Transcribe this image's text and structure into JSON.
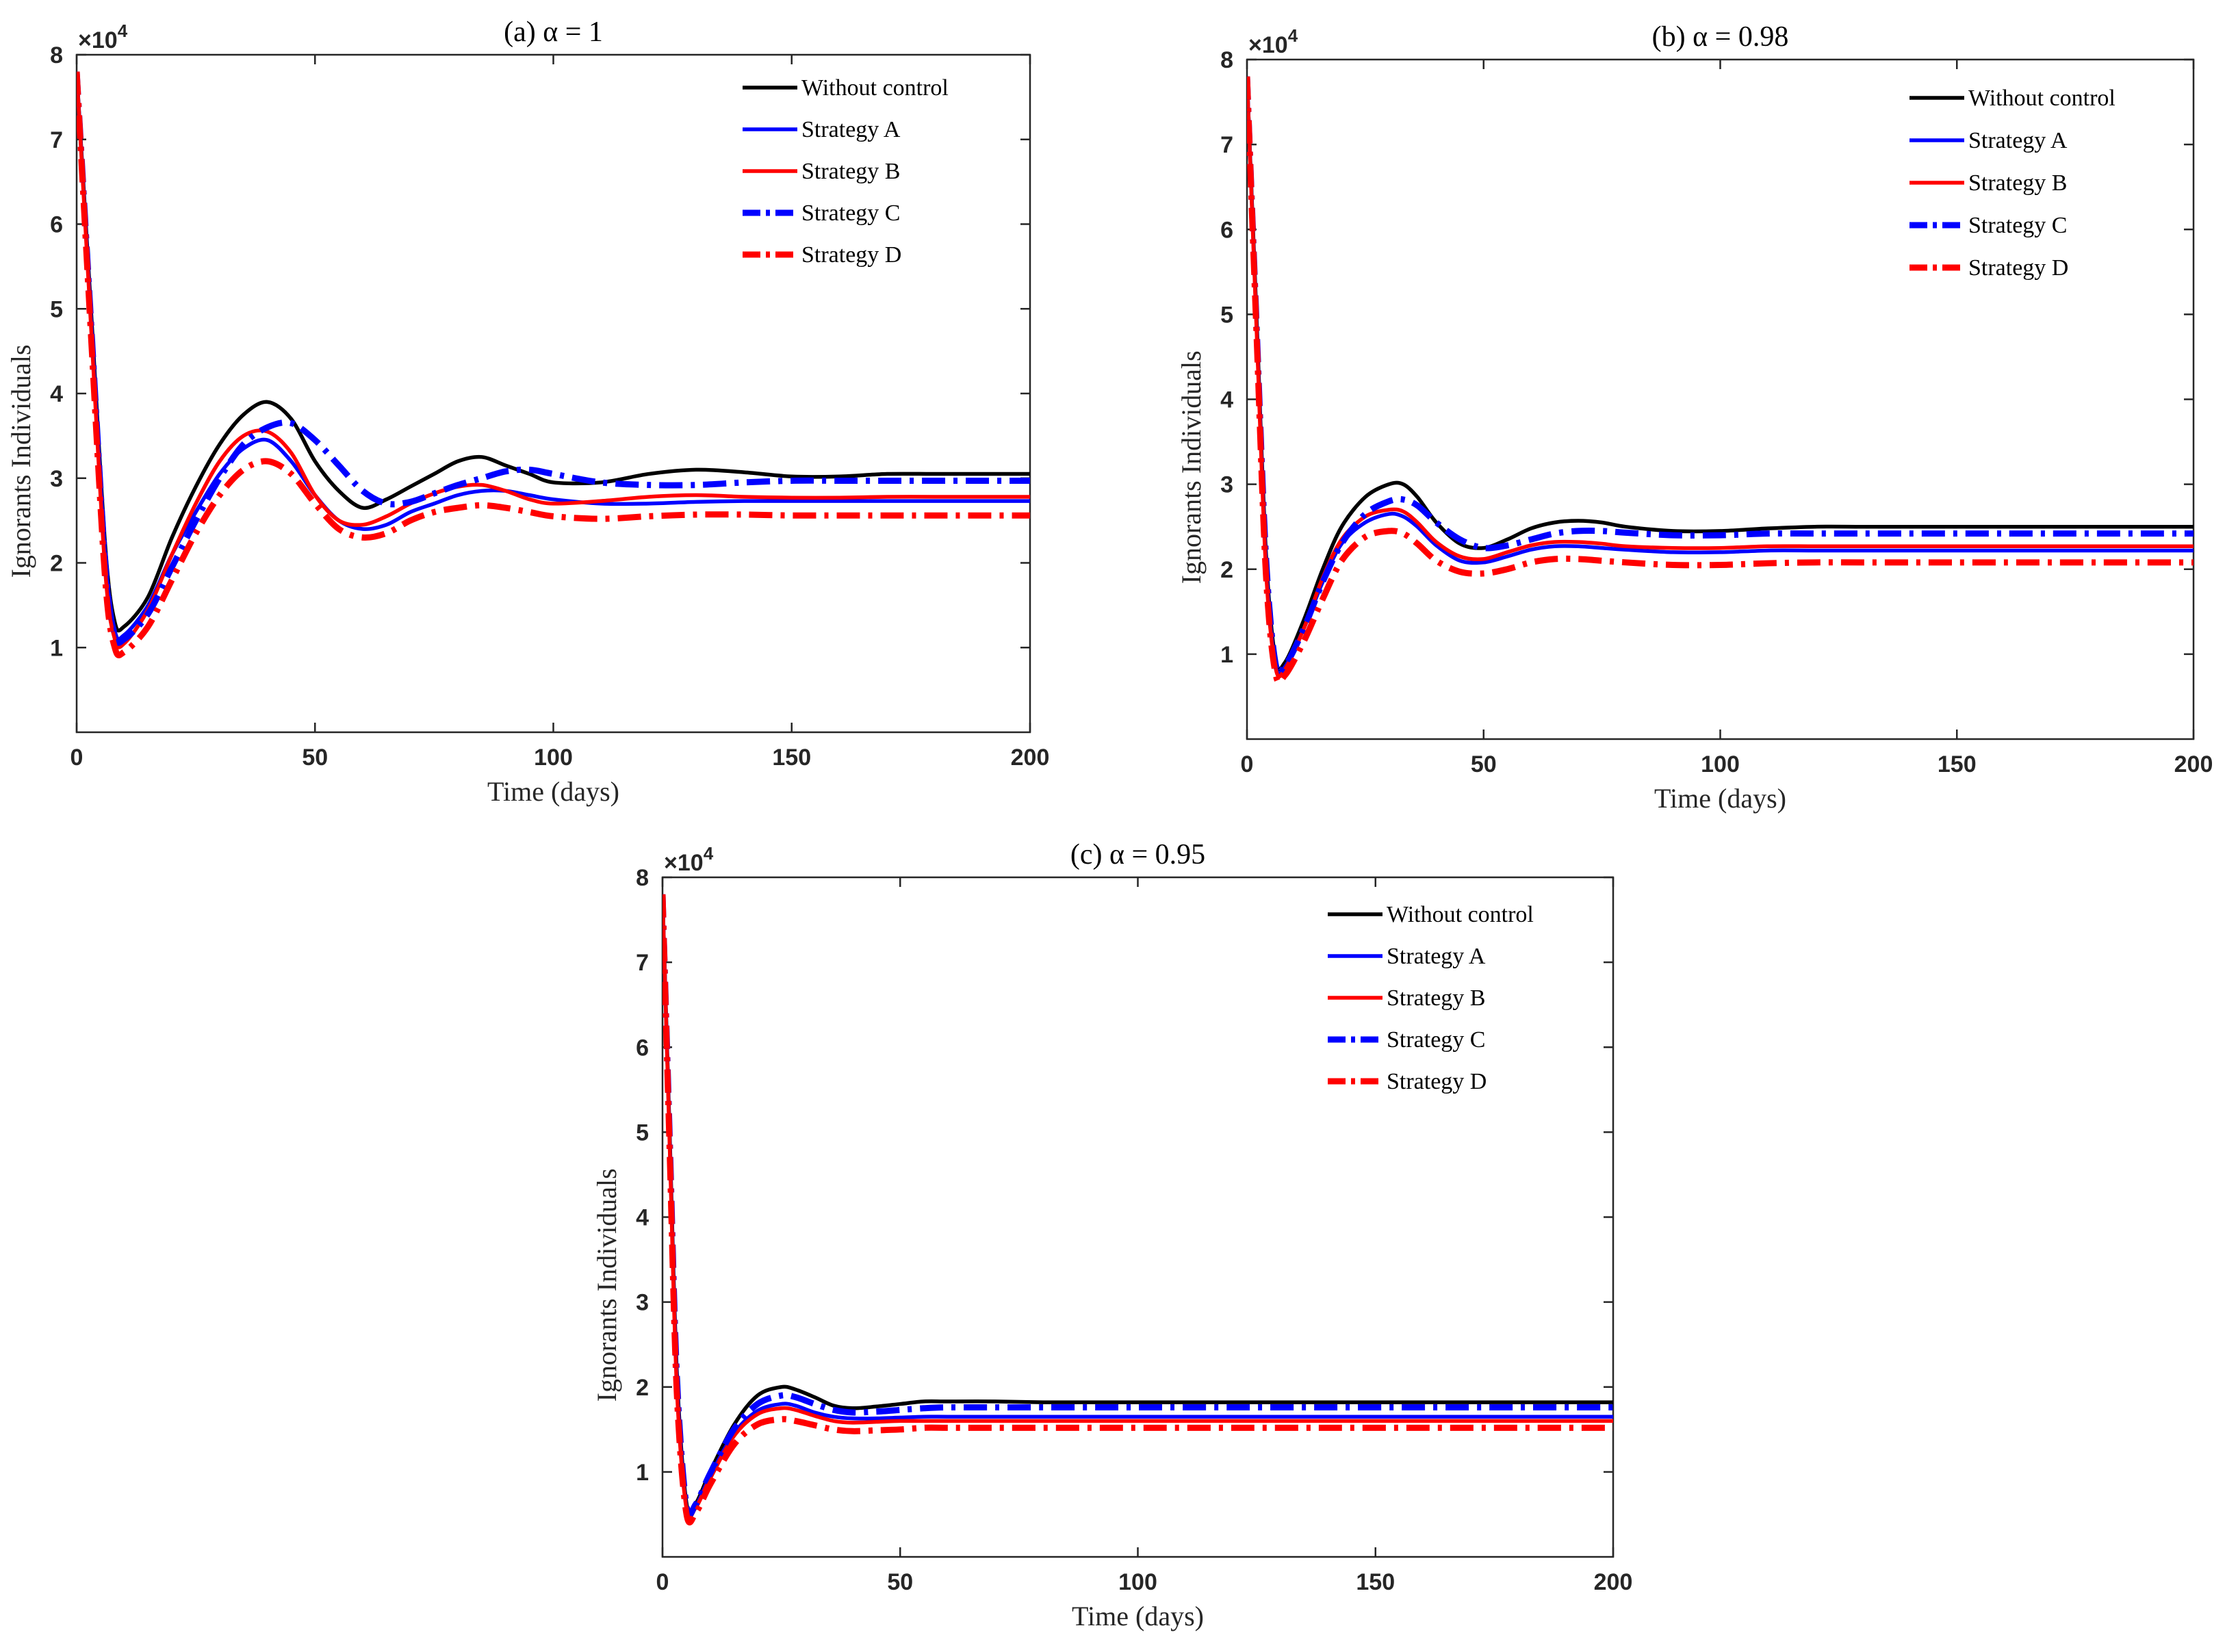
{
  "chart_data": [
    {
      "type": "line",
      "title": "(a) α = 1",
      "xlabel": "Time (days)",
      "ylabel": "Ignorants Individuals",
      "exponent": "×10^4",
      "xlim": [
        0,
        200
      ],
      "ylim": [
        0,
        8
      ],
      "xticks": [
        "0",
        "50",
        "100",
        "150",
        "200"
      ],
      "yticks": [
        "1",
        "2",
        "3",
        "4",
        "5",
        "6",
        "7",
        "8"
      ],
      "legend_position": "top-right",
      "series": [
        {
          "name": "Without control",
          "color": "#000000",
          "style": "solid",
          "x": [
            0,
            3,
            6,
            8,
            10,
            15,
            20,
            25,
            30,
            35,
            40,
            45,
            50,
            55,
            60,
            65,
            70,
            75,
            80,
            85,
            90,
            95,
            100,
            110,
            120,
            130,
            140,
            150,
            160,
            170,
            180,
            190,
            200
          ],
          "y": [
            7.8,
            5.0,
            2.2,
            1.3,
            1.25,
            1.6,
            2.3,
            2.9,
            3.4,
            3.75,
            3.9,
            3.7,
            3.2,
            2.85,
            2.65,
            2.75,
            2.9,
            3.05,
            3.2,
            3.25,
            3.15,
            3.05,
            2.95,
            2.95,
            3.05,
            3.1,
            3.07,
            3.02,
            3.02,
            3.05,
            3.05,
            3.05,
            3.05
          ]
        },
        {
          "name": "Strategy A",
          "color": "#0000ff",
          "style": "solid",
          "x": [
            0,
            3,
            6,
            8,
            10,
            15,
            20,
            25,
            30,
            35,
            40,
            45,
            50,
            55,
            60,
            65,
            70,
            75,
            80,
            85,
            90,
            95,
            100,
            110,
            120,
            130,
            140,
            150,
            160,
            170,
            180,
            190,
            200
          ],
          "y": [
            7.8,
            4.9,
            2.1,
            1.2,
            1.15,
            1.5,
            2.1,
            2.6,
            3.05,
            3.35,
            3.45,
            3.2,
            2.8,
            2.5,
            2.4,
            2.45,
            2.6,
            2.7,
            2.8,
            2.85,
            2.85,
            2.8,
            2.75,
            2.7,
            2.7,
            2.72,
            2.73,
            2.73,
            2.73,
            2.73,
            2.73,
            2.73,
            2.73
          ]
        },
        {
          "name": "Strategy B",
          "color": "#ff0000",
          "style": "solid",
          "x": [
            0,
            3,
            6,
            8,
            10,
            15,
            20,
            25,
            30,
            35,
            40,
            45,
            50,
            55,
            60,
            65,
            70,
            75,
            80,
            85,
            90,
            95,
            100,
            110,
            120,
            130,
            140,
            150,
            160,
            170,
            180,
            190,
            200
          ],
          "y": [
            7.8,
            4.8,
            1.9,
            1.1,
            1.05,
            1.45,
            2.1,
            2.7,
            3.2,
            3.5,
            3.55,
            3.3,
            2.8,
            2.5,
            2.45,
            2.55,
            2.7,
            2.82,
            2.9,
            2.92,
            2.85,
            2.75,
            2.7,
            2.73,
            2.78,
            2.8,
            2.78,
            2.77,
            2.77,
            2.78,
            2.78,
            2.78,
            2.78
          ]
        },
        {
          "name": "Strategy C",
          "color": "#0000ff",
          "style": "dashdot",
          "x": [
            0,
            3,
            6,
            8,
            10,
            15,
            20,
            25,
            30,
            35,
            40,
            45,
            50,
            55,
            60,
            65,
            70,
            75,
            80,
            85,
            90,
            95,
            100,
            110,
            120,
            130,
            140,
            150,
            160,
            170,
            180,
            190,
            200
          ],
          "y": [
            7.8,
            4.85,
            2.0,
            1.15,
            1.1,
            1.4,
            1.95,
            2.5,
            3.0,
            3.4,
            3.6,
            3.65,
            3.45,
            3.15,
            2.85,
            2.7,
            2.72,
            2.82,
            2.92,
            3.0,
            3.08,
            3.1,
            3.05,
            2.95,
            2.92,
            2.92,
            2.95,
            2.97,
            2.97,
            2.97,
            2.97,
            2.97,
            2.97
          ]
        },
        {
          "name": "Strategy D",
          "color": "#ff0000",
          "style": "dashdot",
          "x": [
            0,
            3,
            6,
            8,
            10,
            15,
            20,
            25,
            30,
            35,
            40,
            45,
            50,
            55,
            60,
            65,
            70,
            75,
            80,
            85,
            90,
            95,
            100,
            110,
            120,
            130,
            140,
            150,
            160,
            170,
            180,
            190,
            200
          ],
          "y": [
            7.8,
            4.7,
            1.8,
            1.0,
            0.95,
            1.25,
            1.8,
            2.35,
            2.8,
            3.1,
            3.2,
            3.05,
            2.7,
            2.4,
            2.3,
            2.35,
            2.5,
            2.6,
            2.65,
            2.68,
            2.65,
            2.6,
            2.55,
            2.52,
            2.55,
            2.57,
            2.57,
            2.56,
            2.56,
            2.56,
            2.56,
            2.56,
            2.56
          ]
        }
      ]
    },
    {
      "type": "line",
      "title": "(b) α = 0.98",
      "xlabel": "Time (days)",
      "ylabel": "Ignorants Individuals",
      "exponent": "×10^4",
      "xlim": [
        0,
        200
      ],
      "ylim": [
        0,
        8
      ],
      "xticks": [
        "0",
        "50",
        "100",
        "150",
        "200"
      ],
      "yticks": [
        "1",
        "2",
        "3",
        "4",
        "5",
        "6",
        "7",
        "8"
      ],
      "legend_position": "top-right",
      "series": [
        {
          "name": "Without control",
          "color": "#000000",
          "style": "solid",
          "x": [
            0,
            2,
            4,
            6,
            8,
            12,
            16,
            20,
            25,
            30,
            33,
            36,
            40,
            45,
            50,
            55,
            60,
            65,
            70,
            75,
            80,
            90,
            100,
            110,
            120,
            130,
            140,
            150,
            160,
            170,
            180,
            190,
            200
          ],
          "y": [
            7.8,
            5.0,
            2.2,
            0.95,
            0.9,
            1.4,
            2.0,
            2.5,
            2.85,
            3.0,
            3.0,
            2.85,
            2.55,
            2.3,
            2.25,
            2.35,
            2.48,
            2.55,
            2.57,
            2.55,
            2.5,
            2.45,
            2.45,
            2.48,
            2.5,
            2.5,
            2.5,
            2.5,
            2.5,
            2.5,
            2.5,
            2.5,
            2.5
          ]
        },
        {
          "name": "Strategy A",
          "color": "#0000ff",
          "style": "solid",
          "x": [
            0,
            2,
            4,
            6,
            8,
            12,
            16,
            20,
            25,
            30,
            33,
            36,
            40,
            45,
            50,
            55,
            60,
            65,
            70,
            75,
            80,
            90,
            100,
            110,
            120,
            130,
            140,
            150,
            160,
            170,
            180,
            190,
            200
          ],
          "y": [
            7.8,
            4.9,
            2.1,
            0.88,
            0.85,
            1.3,
            1.85,
            2.3,
            2.55,
            2.65,
            2.62,
            2.5,
            2.28,
            2.1,
            2.08,
            2.15,
            2.23,
            2.27,
            2.27,
            2.25,
            2.23,
            2.2,
            2.2,
            2.22,
            2.22,
            2.22,
            2.22,
            2.22,
            2.22,
            2.22,
            2.22,
            2.22,
            2.22
          ]
        },
        {
          "name": "Strategy B",
          "color": "#ff0000",
          "style": "solid",
          "x": [
            0,
            2,
            4,
            6,
            8,
            12,
            16,
            20,
            25,
            30,
            33,
            36,
            40,
            45,
            50,
            55,
            60,
            65,
            70,
            75,
            80,
            90,
            100,
            110,
            120,
            130,
            140,
            150,
            160,
            170,
            180,
            190,
            200
          ],
          "y": [
            7.8,
            4.85,
            2.0,
            0.85,
            0.82,
            1.3,
            1.9,
            2.35,
            2.62,
            2.7,
            2.68,
            2.55,
            2.32,
            2.15,
            2.12,
            2.2,
            2.28,
            2.32,
            2.32,
            2.3,
            2.27,
            2.25,
            2.25,
            2.27,
            2.27,
            2.27,
            2.27,
            2.27,
            2.27,
            2.27,
            2.27,
            2.27,
            2.27
          ]
        },
        {
          "name": "Strategy C",
          "color": "#0000ff",
          "style": "dashdot",
          "x": [
            0,
            2,
            4,
            6,
            8,
            12,
            16,
            20,
            25,
            30,
            33,
            36,
            40,
            45,
            50,
            55,
            60,
            65,
            70,
            75,
            80,
            90,
            100,
            110,
            120,
            130,
            140,
            150,
            160,
            170,
            180,
            190,
            200
          ],
          "y": [
            7.8,
            4.9,
            2.15,
            0.9,
            0.86,
            1.3,
            1.85,
            2.3,
            2.65,
            2.8,
            2.82,
            2.75,
            2.55,
            2.35,
            2.25,
            2.28,
            2.35,
            2.42,
            2.45,
            2.45,
            2.43,
            2.4,
            2.4,
            2.42,
            2.42,
            2.42,
            2.42,
            2.42,
            2.42,
            2.42,
            2.42,
            2.42,
            2.42
          ]
        },
        {
          "name": "Strategy D",
          "color": "#ff0000",
          "style": "dashdot",
          "x": [
            0,
            2,
            4,
            6,
            8,
            12,
            16,
            20,
            25,
            30,
            33,
            36,
            40,
            45,
            50,
            55,
            60,
            65,
            70,
            75,
            80,
            90,
            100,
            110,
            120,
            130,
            140,
            150,
            160,
            170,
            180,
            190,
            200
          ],
          "y": [
            7.8,
            4.8,
            1.95,
            0.78,
            0.75,
            1.15,
            1.65,
            2.1,
            2.38,
            2.45,
            2.42,
            2.3,
            2.1,
            1.97,
            1.95,
            2.0,
            2.08,
            2.12,
            2.12,
            2.1,
            2.08,
            2.05,
            2.05,
            2.07,
            2.08,
            2.08,
            2.08,
            2.08,
            2.08,
            2.08,
            2.08,
            2.08,
            2.08
          ]
        }
      ]
    },
    {
      "type": "line",
      "title": "(c) α = 0.95",
      "xlabel": "Time (days)",
      "ylabel": "Ignorants Individuals",
      "exponent": "×10^4",
      "xlim": [
        0,
        200
      ],
      "ylim": [
        0,
        8
      ],
      "xticks": [
        "0",
        "50",
        "100",
        "150",
        "200"
      ],
      "yticks": [
        "1",
        "2",
        "3",
        "4",
        "5",
        "6",
        "7",
        "8"
      ],
      "legend_position": "top-right",
      "series": [
        {
          "name": "Without control",
          "color": "#000000",
          "style": "solid",
          "x": [
            0,
            1.5,
            3,
            5,
            7,
            10,
            15,
            20,
            25,
            28,
            32,
            36,
            40,
            45,
            50,
            55,
            60,
            70,
            80,
            90,
            100,
            120,
            140,
            160,
            180,
            200
          ],
          "y": [
            7.8,
            5.0,
            2.2,
            0.65,
            0.63,
            1.0,
            1.55,
            1.9,
            2.0,
            1.97,
            1.88,
            1.78,
            1.75,
            1.77,
            1.8,
            1.83,
            1.83,
            1.83,
            1.82,
            1.82,
            1.82,
            1.82,
            1.82,
            1.82,
            1.82,
            1.82
          ]
        },
        {
          "name": "Strategy A",
          "color": "#0000ff",
          "style": "solid",
          "x": [
            0,
            1.5,
            3,
            5,
            7,
            10,
            15,
            20,
            25,
            28,
            32,
            36,
            40,
            45,
            50,
            55,
            60,
            70,
            80,
            90,
            100,
            120,
            140,
            160,
            180,
            200
          ],
          "y": [
            7.8,
            4.9,
            2.1,
            0.6,
            0.6,
            0.95,
            1.45,
            1.72,
            1.8,
            1.78,
            1.7,
            1.65,
            1.63,
            1.63,
            1.64,
            1.65,
            1.65,
            1.65,
            1.65,
            1.65,
            1.65,
            1.65,
            1.65,
            1.65,
            1.65,
            1.65
          ]
        },
        {
          "name": "Strategy B",
          "color": "#ff0000",
          "style": "solid",
          "x": [
            0,
            1.5,
            3,
            5,
            7,
            10,
            15,
            20,
            25,
            28,
            32,
            36,
            40,
            45,
            50,
            55,
            60,
            70,
            80,
            90,
            100,
            120,
            140,
            160,
            180,
            200
          ],
          "y": [
            7.8,
            4.85,
            2.0,
            0.58,
            0.58,
            0.92,
            1.42,
            1.68,
            1.75,
            1.73,
            1.66,
            1.6,
            1.58,
            1.59,
            1.6,
            1.6,
            1.6,
            1.6,
            1.6,
            1.6,
            1.6,
            1.6,
            1.6,
            1.6,
            1.6,
            1.6
          ]
        },
        {
          "name": "Strategy C",
          "color": "#0000ff",
          "style": "dashdot",
          "x": [
            0,
            1.5,
            3,
            5,
            7,
            10,
            15,
            20,
            25,
            28,
            32,
            36,
            40,
            45,
            50,
            55,
            60,
            70,
            80,
            90,
            100,
            120,
            140,
            160,
            180,
            200
          ],
          "y": [
            7.8,
            4.95,
            2.15,
            0.62,
            0.62,
            0.98,
            1.5,
            1.8,
            1.9,
            1.88,
            1.8,
            1.73,
            1.7,
            1.71,
            1.73,
            1.75,
            1.76,
            1.76,
            1.76,
            1.76,
            1.76,
            1.76,
            1.76,
            1.76,
            1.76,
            1.76
          ]
        },
        {
          "name": "Strategy D",
          "color": "#ff0000",
          "style": "dashdot",
          "x": [
            0,
            1.5,
            3,
            5,
            7,
            10,
            15,
            20,
            25,
            28,
            32,
            36,
            40,
            45,
            50,
            55,
            60,
            70,
            80,
            90,
            100,
            120,
            140,
            160,
            180,
            200
          ],
          "y": [
            7.8,
            4.8,
            1.95,
            0.52,
            0.52,
            0.85,
            1.32,
            1.56,
            1.62,
            1.6,
            1.55,
            1.5,
            1.48,
            1.49,
            1.5,
            1.52,
            1.52,
            1.52,
            1.52,
            1.52,
            1.52,
            1.52,
            1.52,
            1.52,
            1.52,
            1.52
          ]
        }
      ]
    }
  ]
}
